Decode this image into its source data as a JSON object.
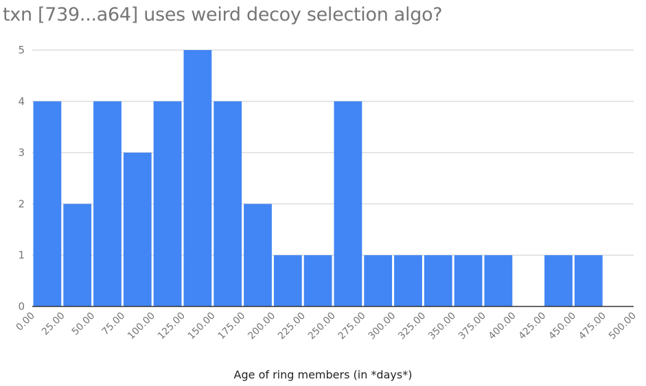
{
  "chart_data": {
    "type": "bar",
    "title": "txn [739...a64] uses weird decoy selection algo?",
    "xlabel": "Age of ring members (in *days*)",
    "ylabel": "",
    "colors": {
      "bar": "#4285F4",
      "grid": "#dddddd",
      "baseline": "#333333"
    },
    "bin_width": 25,
    "x_range": [
      0,
      500
    ],
    "ylim": [
      0,
      5
    ],
    "yticks": [
      "0",
      "1",
      "2",
      "3",
      "4",
      "5"
    ],
    "xticks": [
      "0.00",
      "25.00",
      "50.00",
      "75.00",
      "100.00",
      "125.00",
      "150.00",
      "175.00",
      "200.00",
      "225.00",
      "250.00",
      "275.00",
      "300.00",
      "325.00",
      "350.00",
      "375.00",
      "400.00",
      "425.00",
      "450.00",
      "475.00",
      "500.00"
    ],
    "bins": [
      {
        "start": 0,
        "count": 4
      },
      {
        "start": 25,
        "count": 2
      },
      {
        "start": 50,
        "count": 4
      },
      {
        "start": 75,
        "count": 3
      },
      {
        "start": 100,
        "count": 4
      },
      {
        "start": 125,
        "count": 5
      },
      {
        "start": 150,
        "count": 4
      },
      {
        "start": 175,
        "count": 2
      },
      {
        "start": 200,
        "count": 1
      },
      {
        "start": 225,
        "count": 1
      },
      {
        "start": 250,
        "count": 4
      },
      {
        "start": 275,
        "count": 1
      },
      {
        "start": 300,
        "count": 1
      },
      {
        "start": 325,
        "count": 1
      },
      {
        "start": 350,
        "count": 1
      },
      {
        "start": 375,
        "count": 1
      },
      {
        "start": 400,
        "count": 0
      },
      {
        "start": 425,
        "count": 1
      },
      {
        "start": 450,
        "count": 1
      },
      {
        "start": 475,
        "count": 0
      }
    ],
    "grid": true,
    "legend": "none"
  }
}
